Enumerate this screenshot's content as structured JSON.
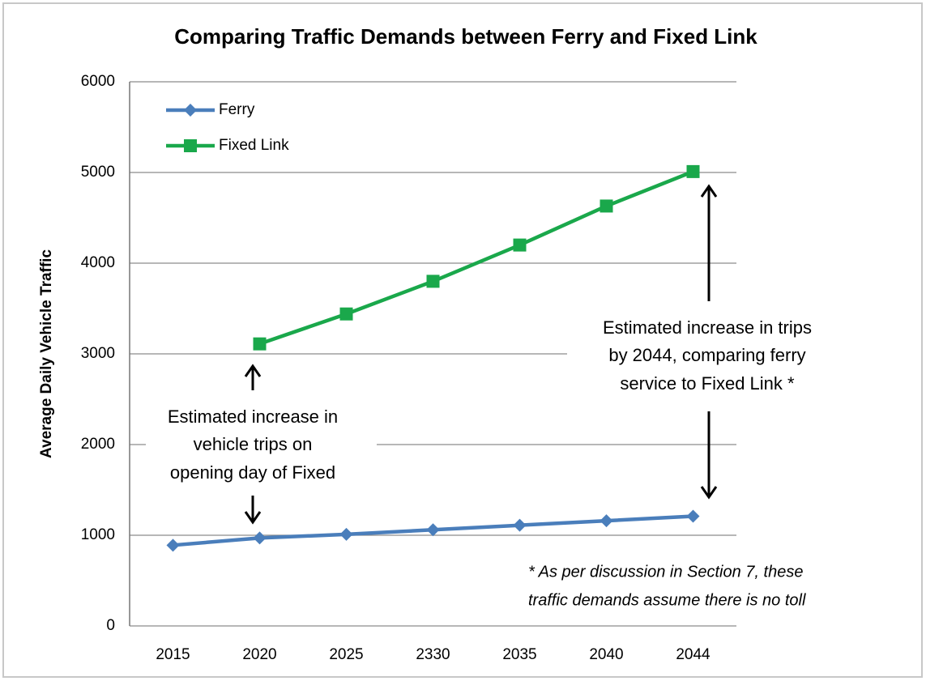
{
  "chart_data": {
    "type": "line",
    "title": "Comparing Traffic Demands between Ferry and Fixed Link",
    "y_label": "Average Daily Vehicle Traffic",
    "categories": [
      "2015",
      "2020",
      "2025",
      "2330",
      "2035",
      "2040",
      "2044"
    ],
    "series": [
      {
        "name": "Ferry",
        "color": "#4a7ebb",
        "marker": "diamond",
        "values": [
          890,
          970,
          1010,
          1060,
          1110,
          1160,
          1210
        ]
      },
      {
        "name": "Fixed Link",
        "color": "#1aa84b",
        "marker": "square",
        "values": [
          null,
          3110,
          3440,
          3800,
          4200,
          4630,
          5010
        ]
      }
    ],
    "ylim": [
      0,
      6000
    ],
    "yticks": [
      0,
      1000,
      2000,
      3000,
      4000,
      5000,
      6000
    ],
    "grid": true,
    "legend": "upper left",
    "annotations": [
      {
        "lines": [
          "Estimated increase in",
          "vehicle trips on",
          "opening day of Fixed"
        ]
      },
      {
        "lines": [
          "Estimated increase in trips",
          "by 2044, comparing ferry",
          "service to Fixed Link *"
        ]
      }
    ],
    "footnote": [
      "* As per discussion in Section 7, these",
      "traffic demands assume there is no toll"
    ]
  }
}
